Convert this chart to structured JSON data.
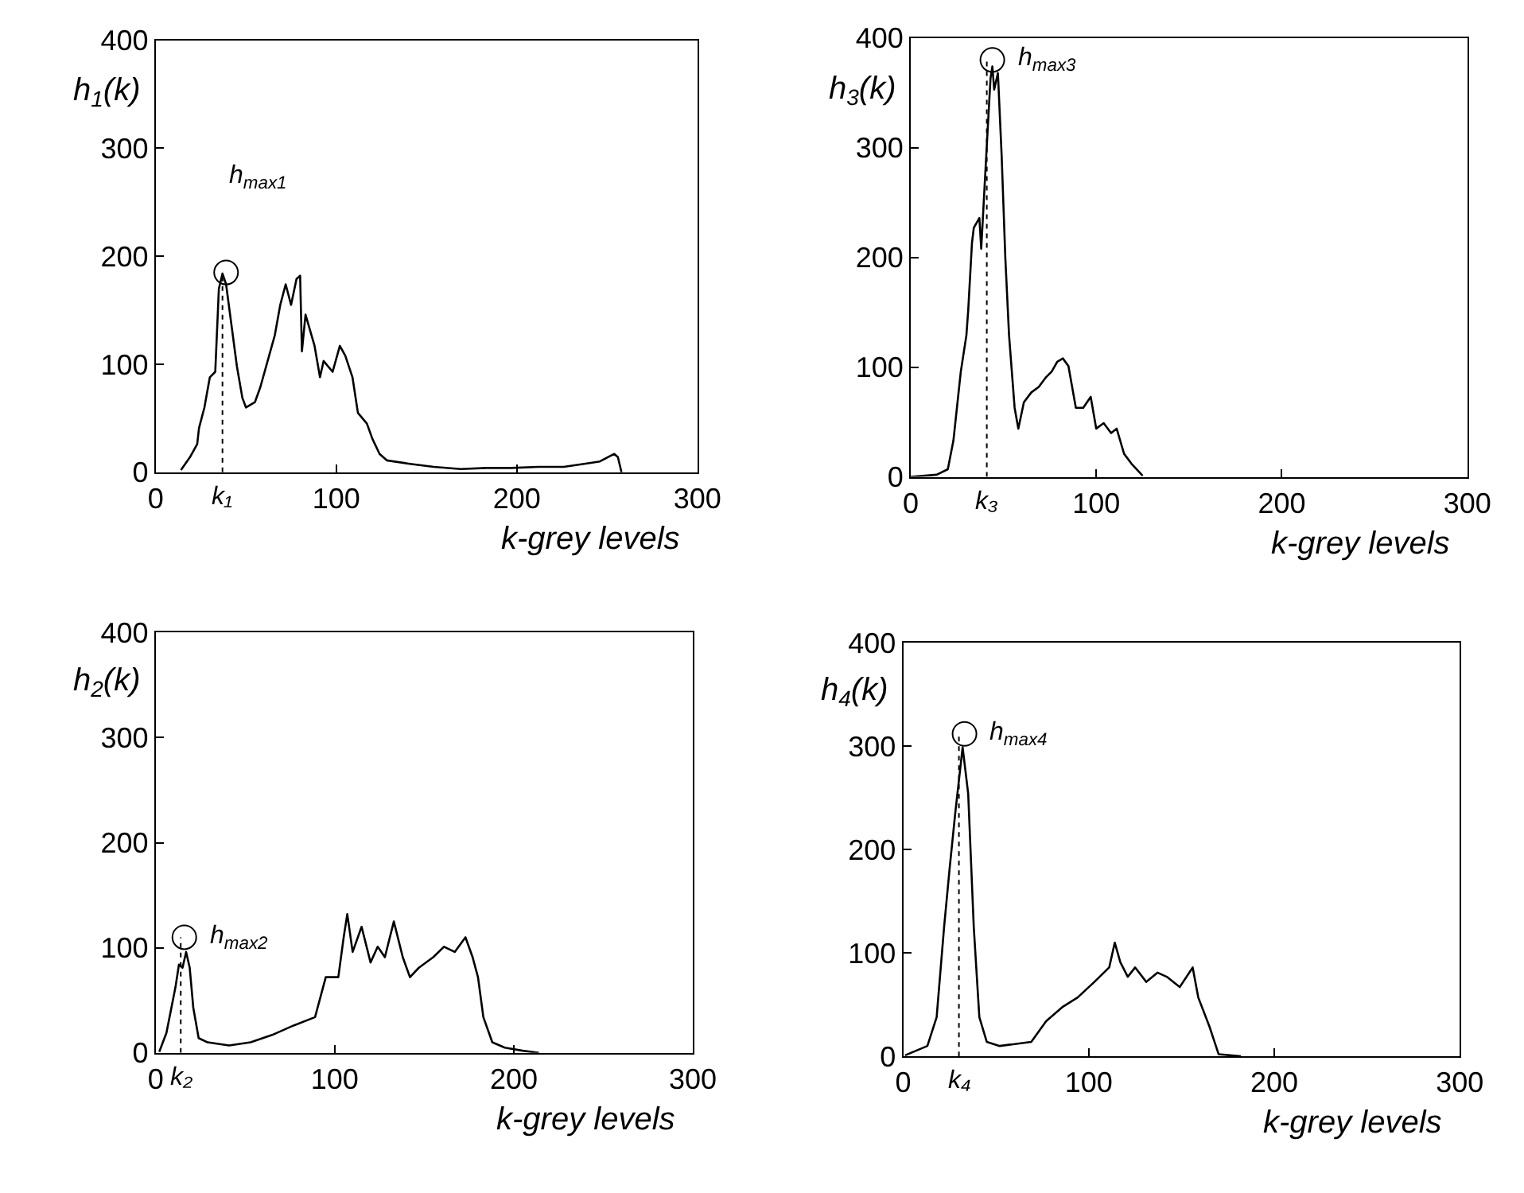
{
  "chart_data": [
    {
      "type": "line",
      "xlabel": "k-grey levels",
      "ylabel": "h$_{1}$(k)",
      "xlim": [
        0,
        300
      ],
      "ylim": [
        0,
        400
      ],
      "xticks": [
        0,
        100,
        200,
        300
      ],
      "yticks": [
        0,
        100,
        200,
        300,
        400
      ],
      "series": [
        {
          "color": "#000000",
          "x": [
            14,
            19,
            23,
            24,
            27,
            30,
            33,
            35,
            37,
            39,
            42,
            45,
            48,
            50,
            55,
            58,
            62,
            66,
            69,
            72,
            75,
            78,
            80,
            81,
            83,
            88,
            91,
            93,
            98,
            102,
            105,
            109,
            112,
            117,
            120,
            124,
            128,
            140,
            154,
            169,
            183,
            197,
            212,
            226,
            238,
            246,
            254,
            256,
            258
          ],
          "values": [
            2,
            14,
            26,
            41,
            60,
            88,
            93,
            170,
            184,
            174,
            136,
            98,
            69,
            60,
            65,
            79,
            103,
            127,
            155,
            174,
            155,
            179,
            182,
            112,
            146,
            117,
            88,
            103,
            93,
            117,
            108,
            88,
            55,
            45,
            31,
            17,
            11,
            8,
            5,
            3,
            4,
            4,
            5,
            5,
            8,
            10,
            17,
            14,
            0
          ]
        },
        {
          "type": "scatter",
          "marker": "circle",
          "color": "#000000",
          "x": [
            39
          ],
          "values": [
            185
          ]
        }
      ],
      "ref_lines": [
        {
          "axis": "x",
          "value": 37,
          "label": "k₁",
          "line_style": "dotted"
        }
      ],
      "annotations": [
        "h$_{max1}$"
      ]
    },
    {
      "type": "line",
      "xlabel": "k-grey levels",
      "ylabel": "h$_{3}$(k)",
      "xlim": [
        0,
        300
      ],
      "ylim": [
        0,
        400
      ],
      "xticks": [
        0,
        100,
        200,
        300
      ],
      "yticks": [
        0,
        100,
        200,
        300,
        400
      ],
      "series": [
        {
          "color": "#000000",
          "x": [
            0,
            14,
            20,
            23,
            27,
            30,
            31,
            33,
            34,
            37,
            38,
            41,
            43,
            44,
            45,
            47,
            49,
            51,
            53,
            56,
            58,
            61,
            65,
            69,
            73,
            76,
            79,
            82,
            85,
            89,
            93,
            97,
            100,
            104,
            108,
            111,
            115,
            119,
            125
          ],
          "values": [
            0,
            2,
            7,
            33,
            96,
            129,
            152,
            213,
            227,
            236,
            208,
            302,
            363,
            374,
            353,
            368,
            293,
            199,
            129,
            63,
            44,
            68,
            77,
            82,
            91,
            96,
            105,
            108,
            101,
            63,
            63,
            73,
            44,
            49,
            40,
            44,
            21,
            12,
            1
          ]
        },
        {
          "type": "scatter",
          "marker": "circle",
          "color": "#000000",
          "x": [
            44
          ],
          "values": [
            380
          ]
        }
      ],
      "ref_lines": [
        {
          "axis": "x",
          "value": 41,
          "label": "k₃",
          "line_style": "dotted"
        }
      ],
      "annotations": [
        "h$_{max3}$"
      ]
    },
    {
      "type": "line",
      "xlabel": "k-grey levels",
      "ylabel": "h$_{2}$(k)",
      "xlim": [
        0,
        300
      ],
      "ylim": [
        0,
        400
      ],
      "xticks": [
        0,
        100,
        200,
        300
      ],
      "yticks": [
        0,
        100,
        200,
        300,
        400
      ],
      "series": [
        {
          "color": "#000000",
          "x": [
            2,
            6,
            11,
            13,
            15,
            17,
            19,
            21,
            24,
            29,
            41,
            53,
            65,
            77,
            89,
            95,
            102,
            105,
            107,
            110,
            115,
            120,
            124,
            128,
            133,
            138,
            142,
            147,
            155,
            161,
            167,
            173,
            177,
            180,
            183,
            188,
            195,
            205,
            214
          ],
          "values": [
            1,
            19,
            62,
            84,
            81,
            96,
            81,
            43,
            14,
            10,
            7,
            10,
            17,
            26,
            34,
            72,
            72,
            110,
            132,
            96,
            120,
            86,
            101,
            91,
            125,
            91,
            72,
            81,
            91,
            101,
            96,
            110,
            91,
            72,
            34,
            10,
            5,
            2,
            0
          ]
        },
        {
          "type": "scatter",
          "marker": "circle",
          "color": "#000000",
          "x": [
            16
          ],
          "values": [
            110
          ]
        }
      ],
      "ref_lines": [
        {
          "axis": "x",
          "value": 14,
          "label": "k₂",
          "line_style": "dotted"
        }
      ],
      "annotations": [
        "h$_{max2}$"
      ]
    },
    {
      "type": "line",
      "xlabel": "k-grey levels",
      "ylabel": "h$_{4}$(k)",
      "xlim": [
        0,
        300
      ],
      "ylim": [
        0,
        400
      ],
      "xticks": [
        0,
        100,
        200,
        300
      ],
      "yticks": [
        0,
        100,
        200,
        300,
        400
      ],
      "series": [
        {
          "color": "#000000",
          "x": [
            1,
            13,
            18,
            22,
            25,
            28,
            31,
            32,
            35,
            38,
            41,
            45,
            52,
            69,
            77,
            86,
            94,
            103,
            111,
            114,
            117,
            121,
            125,
            131,
            137,
            142,
            149,
            156,
            159,
            165,
            170,
            182
          ],
          "values": [
            1,
            10,
            38,
            125,
            182,
            235,
            283,
            299,
            254,
            125,
            38,
            14,
            10,
            14,
            34,
            48,
            57,
            72,
            86,
            110,
            91,
            77,
            86,
            72,
            81,
            77,
            67,
            86,
            57,
            29,
            2,
            0
          ]
        },
        {
          "type": "scatter",
          "marker": "circle",
          "color": "#000000",
          "x": [
            33
          ],
          "values": [
            312
          ]
        }
      ],
      "ref_lines": [
        {
          "axis": "x",
          "value": 30,
          "label": "k₄",
          "line_style": "dotted"
        }
      ],
      "annotations": [
        "h$_{max4}$"
      ]
    }
  ]
}
